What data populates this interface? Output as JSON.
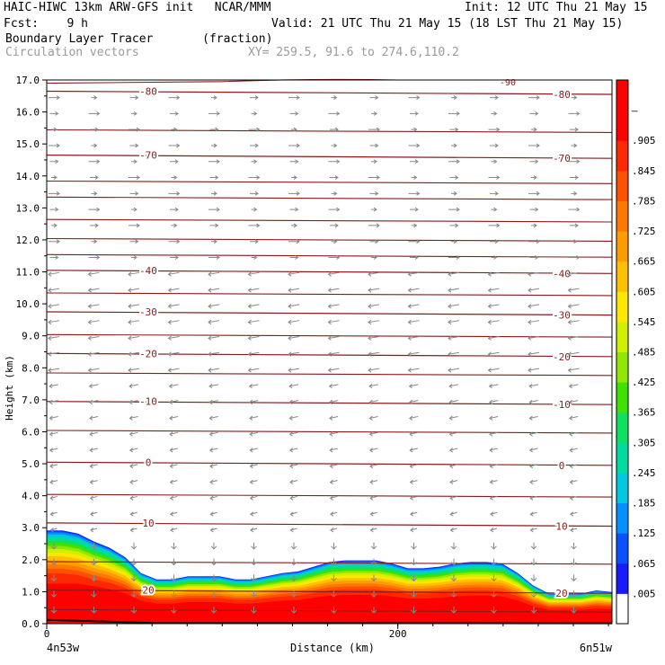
{
  "header": {
    "line1_left": "HAIC-HIWC 13km ARW-GFS init   NCAR/MMM",
    "line1_right": "Init: 12 UTC Thu 21 May 15",
    "line2_left": "Fcst:    9 h",
    "line2_right": "Valid: 21 UTC Thu 21 May 15 (18 LST Thu 21 May 15)",
    "line3_left": "Boundary Layer Tracer       (fraction)",
    "line4_left": "Circulation vectors",
    "line4_right": "XY= 259.5, 91.6 to 274.6,110.2"
  },
  "chart_data": {
    "type": "heatmap",
    "ylabel": "Height (km)",
    "xlabel": "Distance (km)",
    "x_left_label": "4n53w",
    "x_right_label": "6n51w",
    "x_tick_labels": [
      "0",
      "200"
    ],
    "y_tick_labels": [
      "0.0",
      "1.0",
      "2.0",
      "3.0",
      "4.0",
      "5.0",
      "6.0",
      "7.0",
      "8.0",
      "9.0",
      "10.0",
      "11.0",
      "12.0",
      "13.0",
      "14.0",
      "15.0",
      "16.0",
      "17.0"
    ],
    "ylim": [
      0,
      17
    ],
    "xlim": [
      0,
      322
    ],
    "colorbar_labels": [
      ".005",
      ".065",
      ".125",
      ".185",
      ".245",
      ".305",
      ".365",
      ".425",
      ".485",
      ".545",
      ".605",
      ".665",
      ".725",
      ".785",
      ".845",
      ".905",
      "–"
    ],
    "colorbar_colors": [
      "#ffffff",
      "#1a1aff",
      "#0a50ff",
      "#0090ff",
      "#00c8e0",
      "#00dca0",
      "#10e060",
      "#40e000",
      "#90e800",
      "#d0f000",
      "#ffe800",
      "#ffc000",
      "#ff9c00",
      "#ff7800",
      "#ff5000",
      "#ff2800",
      "#ff0000",
      "#ff0000"
    ],
    "contour_color": "#8b1a1a",
    "vector_color": "#888888",
    "temperature_contours": [
      {
        "label": "-80",
        "y": 16.6
      },
      {
        "label": "-70",
        "y": 14.6
      },
      {
        "label": "-40",
        "y": 11.0
      },
      {
        "label": "-30",
        "y": 9.7
      },
      {
        "label": "-20",
        "y": 8.4
      },
      {
        "label": "-10",
        "y": 6.9
      },
      {
        "label": "0",
        "y": 5.0
      },
      {
        "label": "10",
        "y": 3.1
      },
      {
        "label": "20",
        "y": 1.0
      }
    ],
    "top_contour_label": "-90",
    "tracer_top_km": [
      2.95,
      2.95,
      2.85,
      2.6,
      2.4,
      2.1,
      1.6,
      1.4,
      1.4,
      1.5,
      1.5,
      1.5,
      1.4,
      1.4,
      1.5,
      1.6,
      1.65,
      1.8,
      1.95,
      2.0,
      2.0,
      2.0,
      1.9,
      1.75,
      1.75,
      1.8,
      1.9,
      1.95,
      1.95,
      1.9,
      1.6,
      1.2,
      0.95,
      0.95,
      0.95,
      1.05,
      1.0
    ]
  }
}
